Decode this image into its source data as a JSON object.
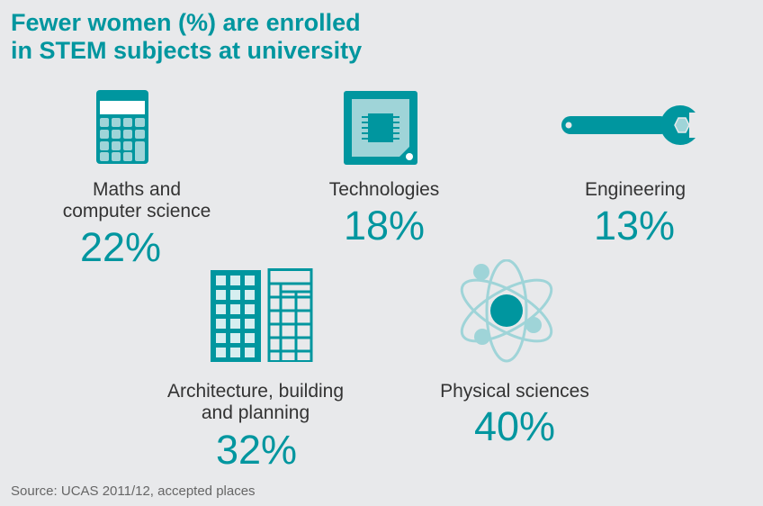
{
  "title": {
    "line1": "Fewer women (%) are enrolled",
    "line2": "in STEM subjects at university"
  },
  "items": [
    {
      "label_lines": [
        "Maths and",
        "computer science"
      ],
      "value": "22%",
      "icon": "calculator-icon"
    },
    {
      "label_lines": [
        "Technologies"
      ],
      "value": "18%",
      "icon": "microchip-icon"
    },
    {
      "label_lines": [
        "Engineering"
      ],
      "value": "13%",
      "icon": "wrench-icon"
    },
    {
      "label_lines": [
        "Architecture, building",
        "and planning"
      ],
      "value": "32%",
      "icon": "buildings-icon"
    },
    {
      "label_lines": [
        "Physical sciences"
      ],
      "value": "40%",
      "icon": "atom-icon"
    }
  ],
  "source": "Source: UCAS 2011/12, accepted places",
  "colors": {
    "accent": "#00969f",
    "accent_light": "#9fd4d8",
    "background": "#e8e9eb"
  }
}
